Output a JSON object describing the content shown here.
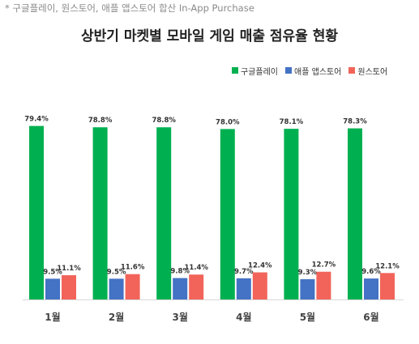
{
  "note": "* 구글플레이, 원스토어, 애플 앱스토어 합산 In-App Purchase",
  "chart_data": {
    "type": "bar",
    "title": "상반기 마켓별 모바일 게임 매출 점유율 현황",
    "categories": [
      "1월",
      "2월",
      "3월",
      "4월",
      "5월",
      "6월"
    ],
    "series": [
      {
        "name": "구글플레이",
        "color": "#00b050",
        "values": [
          79.4,
          78.8,
          78.8,
          78.0,
          78.1,
          78.3
        ],
        "labels": [
          "79.4%",
          "78.8%",
          "78.8%",
          "78.0%",
          "78.1%",
          "78.3%"
        ]
      },
      {
        "name": "애플 앱스토어",
        "color": "#4472c4",
        "values": [
          9.5,
          9.5,
          9.8,
          9.7,
          9.3,
          9.6
        ],
        "labels": [
          "9.5%",
          "9.5%",
          "9.8%",
          "9.7%",
          "9.3%",
          "9.6%"
        ]
      },
      {
        "name": "원스토어",
        "color": "#f2645a",
        "values": [
          11.1,
          11.6,
          11.4,
          12.4,
          12.7,
          12.1
        ],
        "labels": [
          "11.1%",
          "11.6%",
          "11.4%",
          "12.4%",
          "12.7%",
          "12.1%"
        ]
      }
    ],
    "ylim": [
      0,
      100
    ],
    "legend_position": "top-right",
    "grid": false
  }
}
